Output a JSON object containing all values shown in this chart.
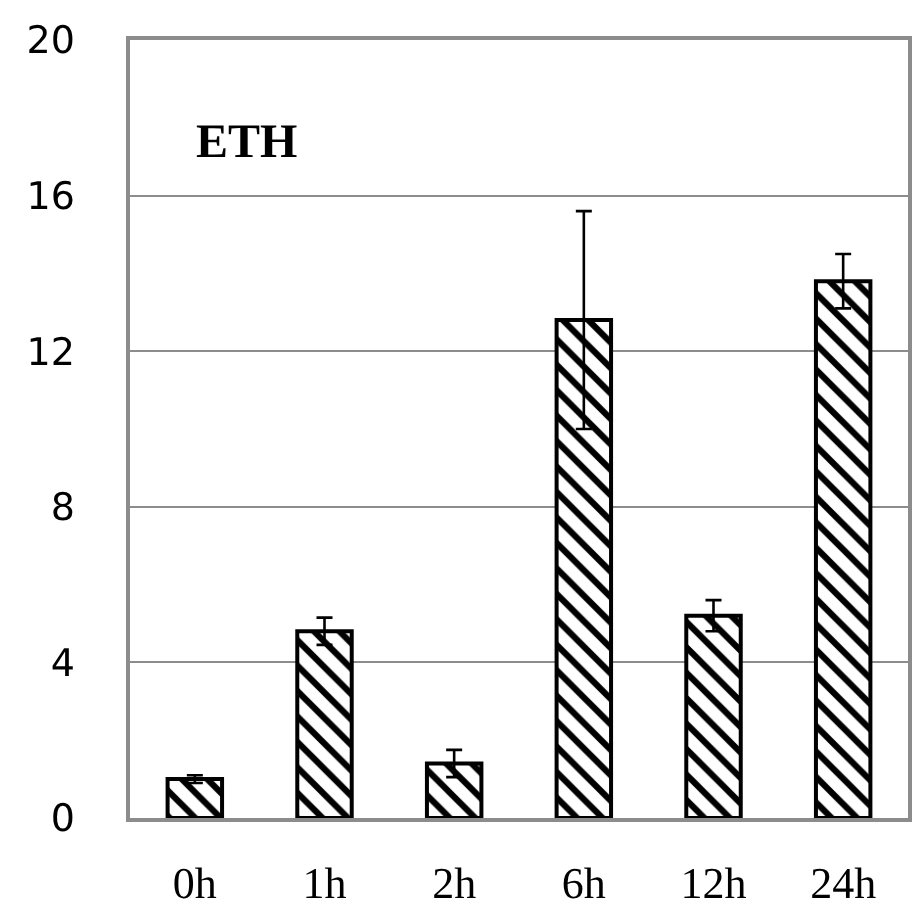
{
  "chart_data": {
    "type": "bar",
    "title": "ETH",
    "categories": [
      "0h",
      "1h",
      "2h",
      "6h",
      "12h",
      "24h"
    ],
    "series": [
      {
        "color": "#000000",
        "values": [
          1.0,
          4.8,
          1.4,
          12.8,
          5.2,
          13.8
        ],
        "errors": [
          0.1,
          0.35,
          0.35,
          2.8,
          0.4,
          0.7
        ]
      }
    ],
    "ylim": [
      0,
      20
    ],
    "yticks": [
      0,
      4,
      8,
      12,
      16,
      20
    ],
    "grid": "y",
    "legend": false
  }
}
